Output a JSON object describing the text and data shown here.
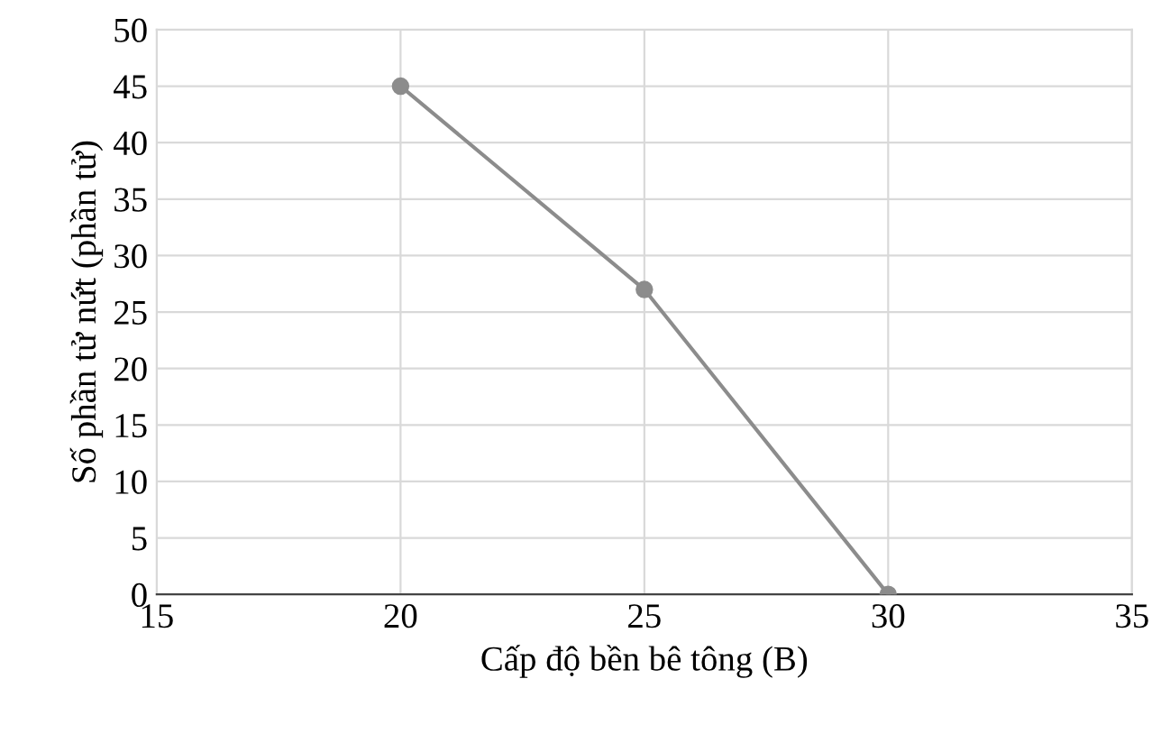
{
  "chart_data": {
    "type": "line",
    "xlabel": "Cấp độ bền bê tông (B)",
    "ylabel": "Số phần tử nứt (phần tử)",
    "x": [
      20,
      25,
      30
    ],
    "series": [
      {
        "color": "#8c8c8c",
        "values": [
          45,
          27,
          0
        ]
      }
    ],
    "xlim": [
      15,
      35
    ],
    "xticks": [
      15,
      20,
      25,
      30,
      35
    ],
    "ylim": [
      0,
      50
    ],
    "yticks": [
      0,
      5,
      10,
      15,
      20,
      25,
      30,
      35,
      40,
      45,
      50
    ],
    "grid": true,
    "marker": "circle",
    "line_style": "solid"
  }
}
